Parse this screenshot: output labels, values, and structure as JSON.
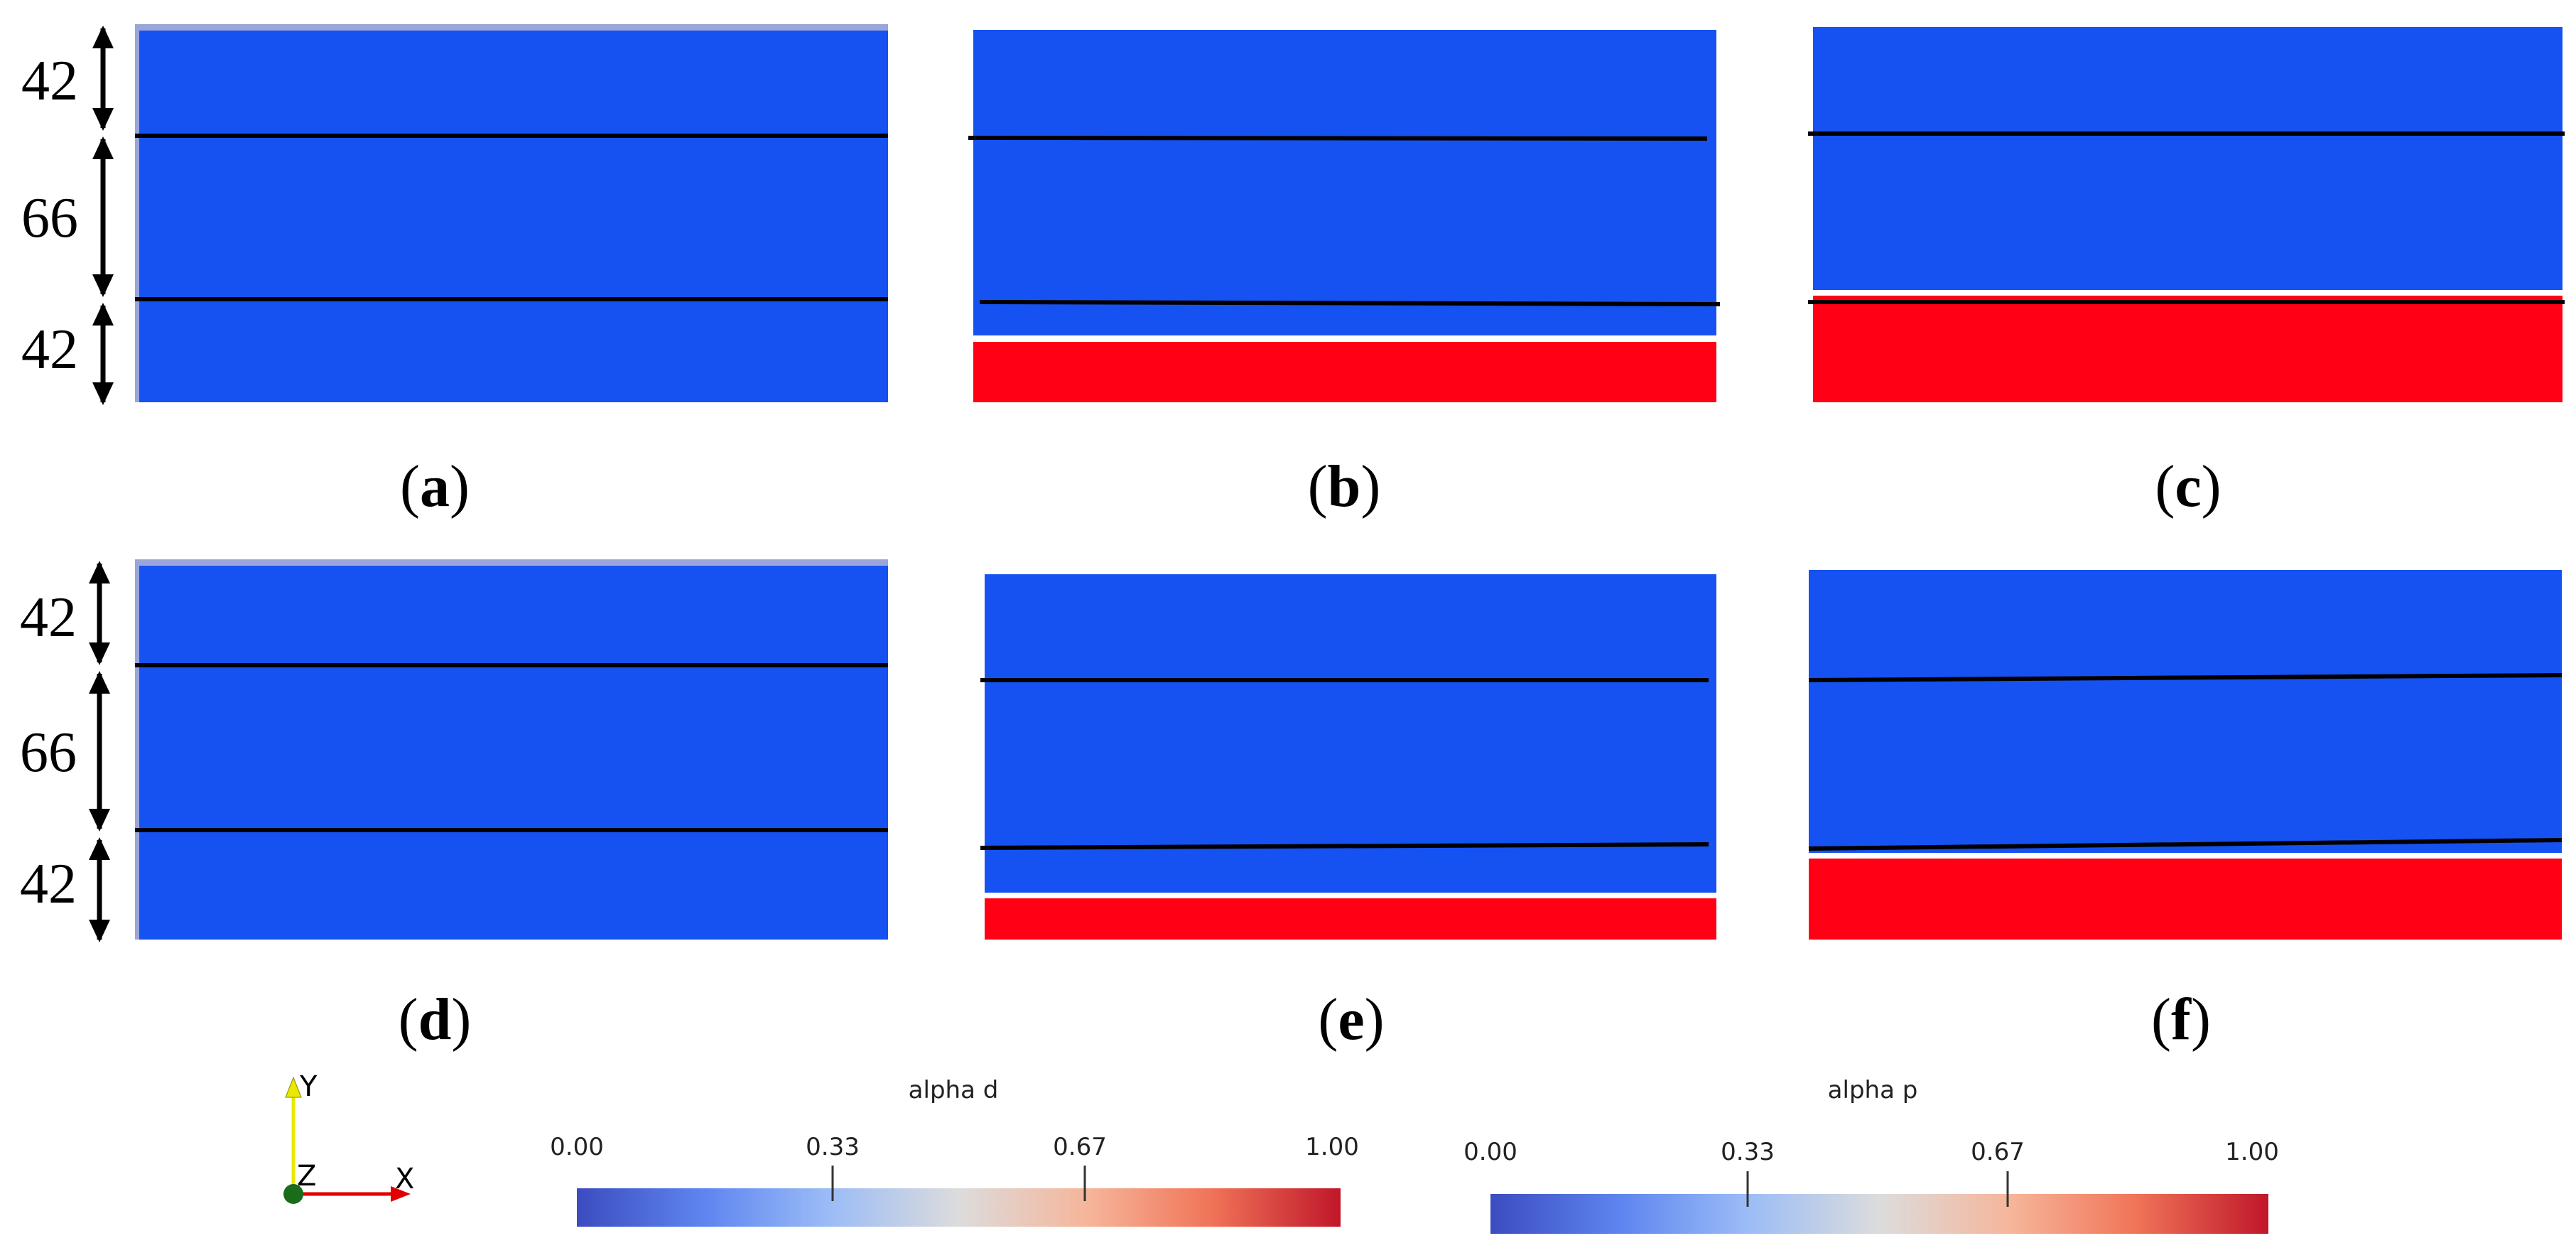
{
  "colors": {
    "liquid": "#1652f2",
    "solid": "#ff0015",
    "interface_line": "#000000",
    "background": "#ffffff",
    "top_edge": "#9aa6d9"
  },
  "dimensions_top": [
    "42",
    "66",
    "42"
  ],
  "dimensions_bottom": [
    "42",
    "66",
    "42"
  ],
  "panels": [
    {
      "label_open": "(",
      "label_letter": "a",
      "label_close": ")",
      "red_fraction": 0.0
    },
    {
      "label_open": "(",
      "label_letter": "b",
      "label_close": ")",
      "red_fraction": 0.17
    },
    {
      "label_open": "(",
      "label_letter": "c",
      "label_close": ")",
      "red_fraction": 0.27
    },
    {
      "label_open": "(",
      "label_letter": "d",
      "label_close": ")",
      "red_fraction": 0.0
    },
    {
      "label_open": "(",
      "label_letter": "e",
      "label_close": ")",
      "red_fraction": 0.11
    },
    {
      "label_open": "(",
      "label_letter": "f",
      "label_close": ")",
      "red_fraction": 0.22
    }
  ],
  "axes": {
    "y_label": "Y",
    "z_label": "Z",
    "x_label": "X",
    "y_color": "#e8e800",
    "x_color": "#e00000",
    "origin_color": "#1a6b1a"
  },
  "colorbars": [
    {
      "title": "alpha d",
      "ticks": [
        "0.00",
        "0.33",
        "0.67",
        "1.00"
      ],
      "tick_values": [
        0.0,
        0.33,
        0.67,
        1.0
      ]
    },
    {
      "title": "alpha p",
      "ticks": [
        "0.00",
        "0.33",
        "0.67",
        "1.00"
      ],
      "tick_values": [
        0.0,
        0.33,
        0.67,
        1.0
      ]
    }
  ]
}
